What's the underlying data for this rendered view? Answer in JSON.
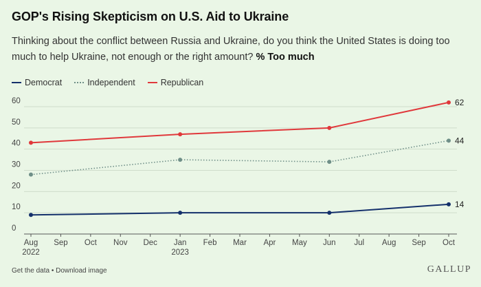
{
  "header": {
    "title": "GOP's Rising Skepticism on U.S. Aid to Ukraine",
    "question": "Thinking about the conflict between Russia and Ukraine, do you think the United States is doing too much to help Ukraine, not enough or the right amount?",
    "measure": "% Too much"
  },
  "chart_data": {
    "type": "line",
    "title": "GOP's Rising Skepticism on U.S. Aid to Ukraine",
    "xlabel": "",
    "ylabel": "% Too much",
    "ylim": [
      0,
      60
    ],
    "yticks": [
      0,
      10,
      20,
      30,
      40,
      50,
      60
    ],
    "x": [
      "Aug 2022",
      "Jan 2023",
      "Jun 2023",
      "Oct 2023"
    ],
    "x_month_index": [
      0,
      5,
      10,
      14
    ],
    "xtick_labels": [
      {
        "label": "Aug",
        "year": "2022"
      },
      {
        "label": "Sep"
      },
      {
        "label": "Oct"
      },
      {
        "label": "Nov"
      },
      {
        "label": "Dec"
      },
      {
        "label": "Jan",
        "year": "2023"
      },
      {
        "label": "Feb"
      },
      {
        "label": "Mar"
      },
      {
        "label": "Apr"
      },
      {
        "label": "May"
      },
      {
        "label": "Jun"
      },
      {
        "label": "Jul"
      },
      {
        "label": "Aug"
      },
      {
        "label": "Sep"
      },
      {
        "label": "Oct"
      }
    ],
    "grid": true,
    "legend": "top-left",
    "series": [
      {
        "name": "Democrat",
        "key": "democrat",
        "color": "#14306b",
        "style": "solid",
        "values": [
          9,
          10,
          10,
          14
        ],
        "end_label": "14"
      },
      {
        "name": "Independent",
        "key": "independent",
        "color": "#6f8f88",
        "style": "dotted",
        "values": [
          28,
          35,
          34,
          44
        ],
        "end_label": "44"
      },
      {
        "name": "Republican",
        "key": "republican",
        "color": "#e0383b",
        "style": "solid",
        "values": [
          43,
          47,
          50,
          62
        ],
        "end_label": "62"
      }
    ]
  },
  "footer": {
    "get_data": "Get the data",
    "separator": "•",
    "download": "Download image",
    "brand": "GALLUP"
  }
}
